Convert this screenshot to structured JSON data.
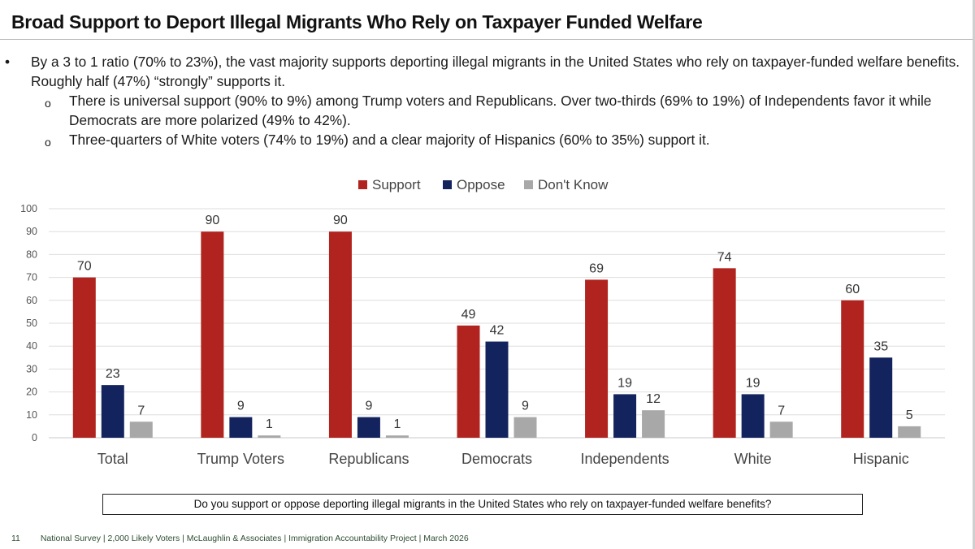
{
  "header": {
    "title": "Broad Support to Deport Illegal Migrants Who Rely on Taxpayer Funded Welfare"
  },
  "bullets": {
    "main_marker": "•",
    "main": "By a 3 to 1 ratio (70% to 23%), the vast majority supports deporting illegal migrants in the United States who rely on taxpayer-funded welfare benefits. Roughly half (47%) “strongly” supports it.",
    "sub_marker": "o",
    "sub": [
      "There is universal support (90% to 9%) among Trump voters and Republicans. Over two-thirds (69% to 19%) of Independents favor it while Democrats are more polarized (49% to 42%).",
      "Three-quarters of White voters (74% to 19%) and a clear majority of Hispanics (60% to 35%) support it."
    ]
  },
  "chart_data": {
    "type": "bar",
    "title": "",
    "xlabel": "",
    "ylabel": "",
    "ylim": [
      0,
      100
    ],
    "yticks": [
      0,
      10,
      20,
      30,
      40,
      50,
      60,
      70,
      80,
      90,
      100
    ],
    "grid": true,
    "legend_position": "top-center",
    "categories": [
      "Total",
      "Trump Voters",
      "Republicans",
      "Democrats",
      "Independents",
      "White",
      "Hispanic"
    ],
    "series": [
      {
        "name": "Support",
        "color": "#b0231e",
        "values": [
          70,
          90,
          90,
          49,
          69,
          74,
          60
        ]
      },
      {
        "name": "Oppose",
        "color": "#13235e",
        "values": [
          23,
          9,
          9,
          42,
          19,
          19,
          35
        ]
      },
      {
        "name": "Don't Know",
        "color": "#a8a8a8",
        "values": [
          7,
          1,
          1,
          9,
          12,
          7,
          5
        ]
      }
    ]
  },
  "question": "Do you support or oppose deporting illegal migrants in the United States who rely on taxpayer-funded welfare benefits?",
  "footer": {
    "page": "11",
    "source": "National Survey | 2,000 Likely Voters | McLaughlin & Associates | Immigration Accountability Project | March 2026"
  }
}
